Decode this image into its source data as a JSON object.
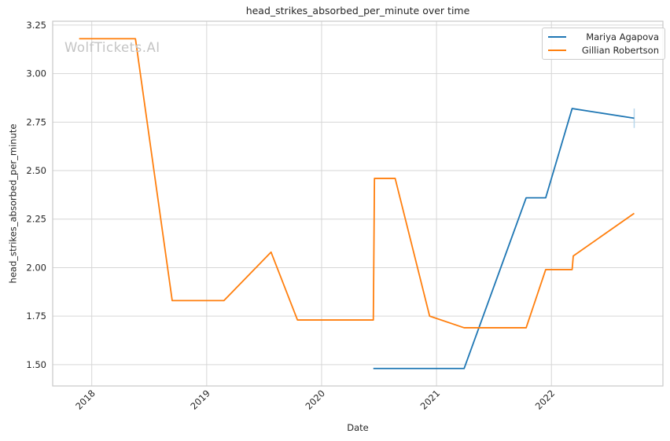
{
  "watermark": {
    "text": "WolfTickets.AI",
    "color": "#c4c4c4"
  },
  "chart_data": {
    "type": "line",
    "title": "head_strikes_absorbed_per_minute over time",
    "xlabel": "Date",
    "ylabel": "head_strikes_absorbed_per_minute",
    "x_ticks": [
      2018,
      2019,
      2020,
      2021,
      2022
    ],
    "y_ticks": [
      1.5,
      1.75,
      2.0,
      2.25,
      2.5,
      2.75,
      3.0,
      3.25
    ],
    "xlim": [
      2017.66,
      2022.97
    ],
    "ylim": [
      1.39,
      3.27
    ],
    "grid": true,
    "grid_color": "#d6d6d6",
    "frame_color": "#c9c9c9",
    "legend_position": "upper right",
    "series": [
      {
        "name": "Mariya Agapova",
        "color": "#1f77b4",
        "points": [
          [
            2020.45,
            1.48
          ],
          [
            2021.24,
            1.48
          ],
          [
            2021.78,
            2.36
          ],
          [
            2021.95,
            2.36
          ],
          [
            2022.18,
            2.82
          ],
          [
            2022.72,
            2.77
          ]
        ],
        "error_bar": {
          "x": 2022.72,
          "low": 2.72,
          "high": 2.82,
          "color": "#b7d7ec"
        }
      },
      {
        "name": "Gillian Robertson",
        "color": "#ff7f0e",
        "points": [
          [
            2017.89,
            3.18
          ],
          [
            2018.38,
            3.18
          ],
          [
            2018.7,
            1.83
          ],
          [
            2019.15,
            1.83
          ],
          [
            2019.56,
            2.08
          ],
          [
            2019.79,
            1.73
          ],
          [
            2020.45,
            1.73
          ],
          [
            2020.46,
            2.46
          ],
          [
            2020.64,
            2.46
          ],
          [
            2020.94,
            1.75
          ],
          [
            2021.24,
            1.69
          ],
          [
            2021.78,
            1.69
          ],
          [
            2021.95,
            1.99
          ],
          [
            2022.18,
            1.99
          ],
          [
            2022.19,
            2.06
          ],
          [
            2022.72,
            2.28
          ]
        ]
      }
    ]
  }
}
